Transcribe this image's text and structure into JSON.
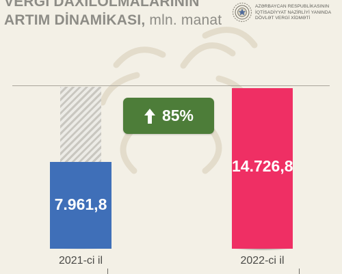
{
  "header": {
    "title_line1": "VERGİ DAXİLOLMALARININ",
    "title_line2_bold": "ARTIM DİNAMİKASI,",
    "title_line2_unit": " mln. manat"
  },
  "organization": {
    "logo_icon": "state-tax-service-emblem-icon",
    "line1": "AZƏRBAYCAN RESPUBLİKASININ",
    "line2": "İQTİSADİYYAT NAZİRLİYİ YANINDA",
    "line3": "DÖVLƏT VERGİ XİDMƏTİ"
  },
  "growth": {
    "icon": "arrow-up-icon",
    "label": "85%"
  },
  "colors": {
    "background": "#f3f0e6",
    "bar_2021": "#3f6fb8",
    "bar_2022": "#ef2f64",
    "badge": "#4d7d39",
    "title": "#8d8c86"
  },
  "chart_data": {
    "type": "bar",
    "categories": [
      "2021-ci il",
      "2022-ci il"
    ],
    "values": [
      7961.8,
      14726.8
    ],
    "value_labels": [
      "7.961,8",
      "14.726,8"
    ],
    "title": "VERGİ DAXİLOLMALARININ ARTIM DİNAMİKASI, mln. manat",
    "xlabel": "",
    "ylabel": "",
    "ylim": [
      0,
      14726.8
    ],
    "grid": false,
    "legend": "none",
    "annotation": "85%"
  }
}
